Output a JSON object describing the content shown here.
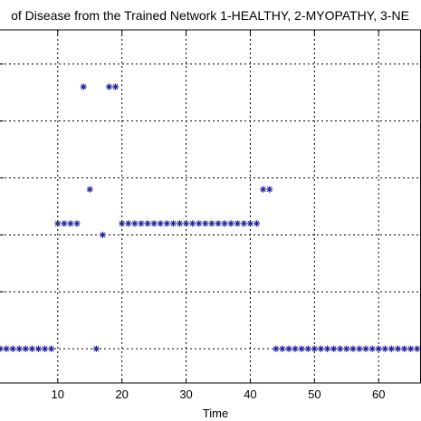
{
  "chart_data": {
    "type": "scatter",
    "title": "of Disease from the Trained Network 1-HEALTHY, 2-MYOPATHY, 3-NE",
    "xlabel": "Time",
    "ylabel": "",
    "xlim": [
      1,
      66.6
    ],
    "ylim": [
      0.7,
      3.8
    ],
    "x_ticks": [
      10,
      20,
      30,
      40,
      50,
      60
    ],
    "x_tick_labels": [
      "10",
      "20",
      "30",
      "40",
      "50",
      "60"
    ],
    "y_gridlines": [
      1,
      1.5,
      2,
      2.5,
      3,
      3.5
    ],
    "grid": true,
    "marker": "*",
    "colors": {
      "marker": "#1f1f9e",
      "grid": "#000000",
      "axis": "#000000",
      "text": "#000000",
      "background": "#ffffff"
    },
    "series": [
      {
        "x": [
          1,
          2,
          3,
          4,
          5,
          6,
          7,
          8,
          9,
          10,
          11,
          12,
          13,
          14,
          15,
          16,
          17,
          18,
          19,
          20,
          21,
          22,
          23,
          24,
          25,
          26,
          27,
          28,
          29,
          30,
          31,
          32,
          33,
          34,
          35,
          36,
          37,
          38,
          39,
          40,
          41,
          42,
          43,
          44,
          45,
          46,
          47,
          48,
          49,
          50,
          51,
          52,
          53,
          54,
          55,
          56,
          57,
          58,
          59,
          60,
          61,
          62,
          63,
          64,
          65,
          66
        ],
        "y": [
          1,
          1,
          1,
          1,
          1,
          1,
          1,
          1,
          1,
          2.1,
          2.1,
          2.1,
          2.1,
          3.3,
          2.4,
          1,
          2,
          3.3,
          3.3,
          2.1,
          2.1,
          2.1,
          2.1,
          2.1,
          2.1,
          2.1,
          2.1,
          2.1,
          2.1,
          2.1,
          2.1,
          2.1,
          2.1,
          2.1,
          2.1,
          2.1,
          2.1,
          2.1,
          2.1,
          2.1,
          2.1,
          2.4,
          2.4,
          1,
          1,
          1,
          1,
          1,
          1,
          1,
          1,
          1,
          1,
          1,
          1,
          1,
          1,
          1,
          1,
          1,
          1,
          1,
          1,
          1,
          1,
          1
        ]
      }
    ]
  }
}
